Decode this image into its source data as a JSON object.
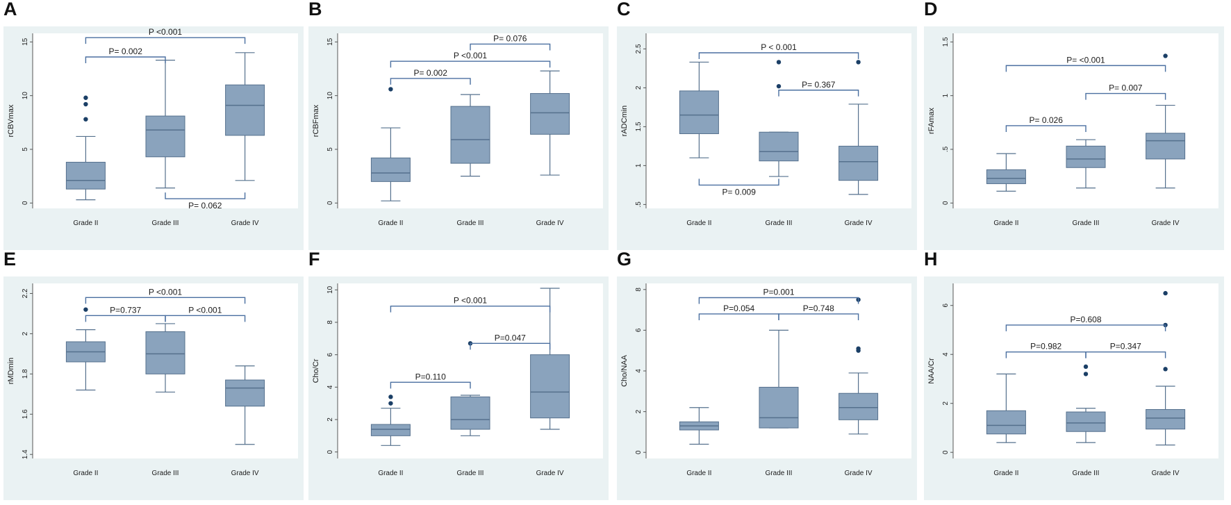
{
  "colors": {
    "panel_bg": "#eaf2f3",
    "plot_bg": "#ffffff",
    "box_fill": "#8aa3bd",
    "box_edge": "#55708d",
    "whisker": "#55708d",
    "outlier": "#1b3f66",
    "bracket": "#4a6fa0",
    "text": "#1a1a1a"
  },
  "chart_data": [
    {
      "label": "A",
      "type": "box",
      "ylabel": "rCBVmax",
      "categories": [
        "Grade II",
        "Grade III",
        "Grade IV"
      ],
      "yticks": [
        "0",
        "5",
        "10",
        "15"
      ],
      "ytick_values": [
        0,
        5,
        10,
        15
      ],
      "ylim": [
        -0.5,
        15.8
      ],
      "boxes": [
        {
          "min": 0.3,
          "q1": 1.3,
          "median": 2.1,
          "q3": 3.8,
          "max": 6.2,
          "outliers": [
            7.8,
            9.2,
            9.8
          ]
        },
        {
          "min": 1.4,
          "q1": 4.3,
          "median": 6.8,
          "q3": 8.1,
          "max": 13.3,
          "outliers": []
        },
        {
          "min": 2.1,
          "q1": 6.3,
          "median": 9.1,
          "q3": 11.0,
          "max": 14.0,
          "outliers": []
        }
      ],
      "brackets": [
        {
          "from": 0,
          "to": 1,
          "y": 13.6,
          "dir": "down",
          "text": "P= 0.002"
        },
        {
          "from": 0,
          "to": 2,
          "y": 15.4,
          "dir": "down",
          "text": "P <0.001"
        },
        {
          "from": 1,
          "to": 2,
          "y": 0.4,
          "dir": "up",
          "text": "P= 0.062"
        }
      ]
    },
    {
      "label": "B",
      "type": "box",
      "ylabel": "rCBFmax",
      "categories": [
        "Grade II",
        "Grade III",
        "Grade IV"
      ],
      "yticks": [
        "0",
        "5",
        "10",
        "15"
      ],
      "ytick_values": [
        0,
        5,
        10,
        15
      ],
      "ylim": [
        -0.5,
        15.8
      ],
      "boxes": [
        {
          "min": 0.2,
          "q1": 2.0,
          "median": 2.8,
          "q3": 4.2,
          "max": 7.0,
          "outliers": [
            10.6
          ]
        },
        {
          "min": 2.5,
          "q1": 3.7,
          "median": 5.9,
          "q3": 9.0,
          "max": 10.1,
          "outliers": []
        },
        {
          "min": 2.6,
          "q1": 6.4,
          "median": 8.4,
          "q3": 10.2,
          "max": 12.3,
          "outliers": []
        }
      ],
      "brackets": [
        {
          "from": 0,
          "to": 1,
          "y": 11.6,
          "dir": "down",
          "text": "P= 0.002"
        },
        {
          "from": 0,
          "to": 2,
          "y": 13.2,
          "dir": "down",
          "text": "P <0.001"
        },
        {
          "from": 1,
          "to": 2,
          "y": 14.8,
          "dir": "down",
          "text": "P= 0.076"
        }
      ]
    },
    {
      "label": "C",
      "type": "box",
      "ylabel": "rADCmin",
      "categories": [
        "Grade II",
        "Grade III",
        "Grade IV"
      ],
      "yticks": [
        ".5",
        "1",
        "1.5",
        "2",
        "2.5"
      ],
      "ytick_values": [
        0.5,
        1,
        1.5,
        2,
        2.5
      ],
      "ylim": [
        0.45,
        2.7
      ],
      "boxes": [
        {
          "min": 1.1,
          "q1": 1.41,
          "median": 1.65,
          "q3": 1.96,
          "max": 2.33,
          "outliers": []
        },
        {
          "min": 0.86,
          "q1": 1.06,
          "median": 1.18,
          "q3": 1.43,
          "max": 1.43,
          "outliers": [
            2.02,
            2.33
          ]
        },
        {
          "min": 0.63,
          "q1": 0.81,
          "median": 1.05,
          "q3": 1.25,
          "max": 1.79,
          "outliers": [
            2.33
          ]
        }
      ],
      "brackets": [
        {
          "from": 0,
          "to": 2,
          "y": 2.45,
          "dir": "down",
          "text": "P < 0.001"
        },
        {
          "from": 1,
          "to": 2,
          "y": 1.97,
          "dir": "down",
          "text": "P= 0.367"
        },
        {
          "from": 0,
          "to": 1,
          "y": 0.75,
          "dir": "up",
          "text": "P= 0.009"
        }
      ]
    },
    {
      "label": "D",
      "type": "box",
      "ylabel": "rFAmax",
      "categories": [
        "Grade II",
        "Grade III",
        "Grade IV"
      ],
      "yticks": [
        "0",
        ".5",
        "1",
        "1.5"
      ],
      "ytick_values": [
        0,
        0.5,
        1,
        1.5
      ],
      "ylim": [
        -0.05,
        1.58
      ],
      "boxes": [
        {
          "min": 0.11,
          "q1": 0.18,
          "median": 0.23,
          "q3": 0.31,
          "max": 0.46,
          "outliers": []
        },
        {
          "min": 0.14,
          "q1": 0.33,
          "median": 0.41,
          "q3": 0.53,
          "max": 0.59,
          "outliers": []
        },
        {
          "min": 0.14,
          "q1": 0.41,
          "median": 0.58,
          "q3": 0.65,
          "max": 0.91,
          "outliers": [
            1.37
          ]
        }
      ],
      "brackets": [
        {
          "from": 0,
          "to": 1,
          "y": 0.72,
          "dir": "down",
          "text": "P= 0.026"
        },
        {
          "from": 1,
          "to": 2,
          "y": 1.02,
          "dir": "down",
          "text": "P= 0.007"
        },
        {
          "from": 0,
          "to": 2,
          "y": 1.28,
          "dir": "down",
          "text": "P= <0.001"
        }
      ]
    },
    {
      "label": "E",
      "type": "box",
      "ylabel": "rMDmin",
      "categories": [
        "Grade II",
        "Grade III",
        "Grade IV"
      ],
      "yticks": [
        "1.4",
        "1.6",
        "1.8",
        "2",
        "2.2"
      ],
      "ytick_values": [
        1.4,
        1.6,
        1.8,
        2,
        2.2
      ],
      "ylim": [
        1.38,
        2.25
      ],
      "boxes": [
        {
          "min": 1.72,
          "q1": 1.86,
          "median": 1.91,
          "q3": 1.96,
          "max": 2.02,
          "outliers": [
            2.12
          ]
        },
        {
          "min": 1.71,
          "q1": 1.8,
          "median": 1.9,
          "q3": 2.01,
          "max": 2.05,
          "outliers": []
        },
        {
          "min": 1.45,
          "q1": 1.64,
          "median": 1.73,
          "q3": 1.77,
          "max": 1.84,
          "outliers": []
        }
      ],
      "brackets": [
        {
          "from": 0,
          "to": 1,
          "y": 2.09,
          "dir": "down",
          "text": "P=0.737"
        },
        {
          "from": 1,
          "to": 2,
          "y": 2.09,
          "dir": "down",
          "text": "P <0.001"
        },
        {
          "from": 0,
          "to": 2,
          "y": 2.18,
          "dir": "down",
          "text": "P <0.001"
        }
      ]
    },
    {
      "label": "F",
      "type": "box",
      "ylabel": "Cho/Cr",
      "categories": [
        "Grade II",
        "Grade III",
        "Grade IV"
      ],
      "yticks": [
        "0",
        "2",
        "4",
        "6",
        "8",
        "10"
      ],
      "ytick_values": [
        0,
        2,
        4,
        6,
        8,
        10
      ],
      "ylim": [
        -0.4,
        10.4
      ],
      "boxes": [
        {
          "min": 0.4,
          "q1": 1.0,
          "median": 1.4,
          "q3": 1.7,
          "max": 2.7,
          "outliers": [
            3.0,
            3.4
          ]
        },
        {
          "min": 1.0,
          "q1": 1.4,
          "median": 2.0,
          "q3": 3.4,
          "max": 3.5,
          "outliers": [
            6.7
          ]
        },
        {
          "min": 1.4,
          "q1": 2.1,
          "median": 3.7,
          "q3": 6.0,
          "max": 10.1,
          "outliers": []
        }
      ],
      "brackets": [
        {
          "from": 0,
          "to": 1,
          "y": 4.3,
          "dir": "down",
          "text": "P=0.110"
        },
        {
          "from": 1,
          "to": 2,
          "y": 6.7,
          "dir": "down",
          "text": "P=0.047"
        },
        {
          "from": 0,
          "to": 2,
          "y": 9.0,
          "dir": "down",
          "text": "P <0.001"
        }
      ]
    },
    {
      "label": "G",
      "type": "box",
      "ylabel": "Cho/NAA",
      "categories": [
        "Grade II",
        "Grade III",
        "Grade IV"
      ],
      "yticks": [
        "0",
        "2",
        "4",
        "6",
        "8"
      ],
      "ytick_values": [
        0,
        2,
        4,
        6,
        8
      ],
      "ylim": [
        -0.3,
        8.3
      ],
      "boxes": [
        {
          "min": 0.4,
          "q1": 1.1,
          "median": 1.3,
          "q3": 1.5,
          "max": 2.2,
          "outliers": []
        },
        {
          "min": 1.2,
          "q1": 1.2,
          "median": 1.7,
          "q3": 3.2,
          "max": 6.0,
          "outliers": []
        },
        {
          "min": 0.9,
          "q1": 1.6,
          "median": 2.2,
          "q3": 2.9,
          "max": 3.9,
          "outliers": [
            5.0,
            5.1,
            7.5
          ]
        }
      ],
      "brackets": [
        {
          "from": 0,
          "to": 1,
          "y": 6.8,
          "dir": "down",
          "text": "P=0.054"
        },
        {
          "from": 1,
          "to": 2,
          "y": 6.8,
          "dir": "down",
          "text": "P=0.748"
        },
        {
          "from": 0,
          "to": 2,
          "y": 7.6,
          "dir": "down",
          "text": "P=0.001"
        }
      ]
    },
    {
      "label": "H",
      "type": "box",
      "ylabel": "NAA/Cr",
      "categories": [
        "Grade II",
        "Grade III",
        "Grade IV"
      ],
      "yticks": [
        "0",
        "2",
        "4",
        "6"
      ],
      "ytick_values": [
        0,
        2,
        4,
        6
      ],
      "ylim": [
        -0.25,
        6.9
      ],
      "boxes": [
        {
          "min": 0.4,
          "q1": 0.75,
          "median": 1.1,
          "q3": 1.7,
          "max": 3.2,
          "outliers": []
        },
        {
          "min": 0.4,
          "q1": 0.85,
          "median": 1.2,
          "q3": 1.65,
          "max": 1.8,
          "outliers": [
            3.2,
            3.5
          ]
        },
        {
          "min": 0.3,
          "q1": 0.95,
          "median": 1.4,
          "q3": 1.75,
          "max": 2.7,
          "outliers": [
            3.4,
            5.2,
            6.5
          ]
        }
      ],
      "brackets": [
        {
          "from": 0,
          "to": 1,
          "y": 4.1,
          "dir": "down",
          "text": "P=0.982"
        },
        {
          "from": 1,
          "to": 2,
          "y": 4.1,
          "dir": "down",
          "text": "P=0.347"
        },
        {
          "from": 0,
          "to": 2,
          "y": 5.2,
          "dir": "down",
          "text": "P=0.608"
        }
      ]
    }
  ]
}
